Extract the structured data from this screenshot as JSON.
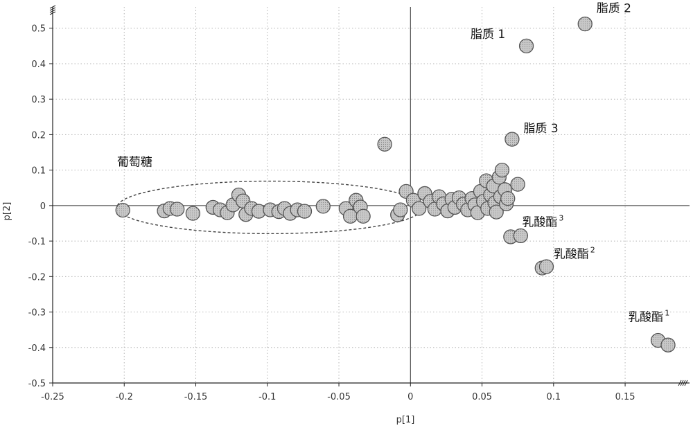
{
  "chart_data": {
    "type": "scatter",
    "xlabel": "p[1]",
    "ylabel": "p[2]",
    "xlim": [
      -0.25,
      0.195
    ],
    "ylim": [
      -0.5,
      0.56
    ],
    "x_ticks": [
      "-0.25",
      "-0.2",
      "-0.15",
      "-0.1",
      "-0.05",
      "0",
      "0.05",
      "0.1",
      "0.15"
    ],
    "x_tick_values": [
      -0.25,
      -0.2,
      -0.15,
      -0.1,
      -0.05,
      0,
      0.05,
      0.1,
      0.15
    ],
    "y_ticks": [
      "0.5",
      "0.4",
      "0.3",
      "0.2",
      "0.1",
      "0",
      "-0.1",
      "-0.2",
      "-0.3",
      "-0.4",
      "-0.5"
    ],
    "y_tick_values": [
      0.5,
      0.4,
      0.3,
      0.2,
      0.1,
      0,
      -0.1,
      -0.2,
      -0.3,
      -0.4,
      -0.5
    ],
    "grid": true,
    "point_color": "#c8c8c8",
    "points": [
      {
        "x": -0.201,
        "y": -0.013
      },
      {
        "x": -0.172,
        "y": -0.015
      },
      {
        "x": -0.168,
        "y": -0.008
      },
      {
        "x": -0.163,
        "y": -0.01
      },
      {
        "x": -0.152,
        "y": -0.022
      },
      {
        "x": -0.138,
        "y": -0.005
      },
      {
        "x": -0.133,
        "y": -0.012
      },
      {
        "x": -0.128,
        "y": -0.02
      },
      {
        "x": -0.124,
        "y": 0.002
      },
      {
        "x": -0.12,
        "y": 0.03
      },
      {
        "x": -0.117,
        "y": 0.013
      },
      {
        "x": -0.115,
        "y": -0.025
      },
      {
        "x": -0.111,
        "y": -0.008
      },
      {
        "x": -0.106,
        "y": -0.016
      },
      {
        "x": -0.098,
        "y": -0.012
      },
      {
        "x": -0.092,
        "y": -0.017
      },
      {
        "x": -0.088,
        "y": -0.008
      },
      {
        "x": -0.084,
        "y": -0.022
      },
      {
        "x": -0.079,
        "y": -0.012
      },
      {
        "x": -0.074,
        "y": -0.016
      },
      {
        "x": -0.061,
        "y": -0.002
      },
      {
        "x": -0.045,
        "y": -0.008
      },
      {
        "x": -0.042,
        "y": -0.03
      },
      {
        "x": -0.038,
        "y": 0.015
      },
      {
        "x": -0.035,
        "y": -0.004
      },
      {
        "x": -0.033,
        "y": -0.03
      },
      {
        "x": -0.018,
        "y": 0.173
      },
      {
        "x": -0.009,
        "y": -0.026
      },
      {
        "x": -0.007,
        "y": -0.012
      },
      {
        "x": -0.003,
        "y": 0.04
      },
      {
        "x": 0.002,
        "y": 0.015
      },
      {
        "x": 0.006,
        "y": -0.008
      },
      {
        "x": 0.01,
        "y": 0.034
      },
      {
        "x": 0.014,
        "y": 0.012
      },
      {
        "x": 0.017,
        "y": -0.01
      },
      {
        "x": 0.02,
        "y": 0.025
      },
      {
        "x": 0.023,
        "y": 0.005
      },
      {
        "x": 0.026,
        "y": -0.015
      },
      {
        "x": 0.029,
        "y": 0.018
      },
      {
        "x": 0.031,
        "y": -0.005
      },
      {
        "x": 0.034,
        "y": 0.022
      },
      {
        "x": 0.037,
        "y": 0.004
      },
      {
        "x": 0.04,
        "y": -0.012
      },
      {
        "x": 0.043,
        "y": 0.02
      },
      {
        "x": 0.045,
        "y": 0.002
      },
      {
        "x": 0.047,
        "y": -0.02
      },
      {
        "x": 0.049,
        "y": 0.04
      },
      {
        "x": 0.051,
        "y": 0.012
      },
      {
        "x": 0.053,
        "y": 0.07
      },
      {
        "x": 0.054,
        "y": -0.008
      },
      {
        "x": 0.056,
        "y": 0.03
      },
      {
        "x": 0.058,
        "y": 0.055
      },
      {
        "x": 0.059,
        "y": 0.008
      },
      {
        "x": 0.06,
        "y": -0.018
      },
      {
        "x": 0.062,
        "y": 0.08
      },
      {
        "x": 0.063,
        "y": 0.025
      },
      {
        "x": 0.064,
        "y": 0.1
      },
      {
        "x": 0.066,
        "y": 0.045
      },
      {
        "x": 0.067,
        "y": 0.005
      },
      {
        "x": 0.068,
        "y": 0.02
      },
      {
        "x": 0.07,
        "y": -0.088
      },
      {
        "x": 0.071,
        "y": 0.187
      },
      {
        "x": 0.075,
        "y": 0.06
      },
      {
        "x": 0.077,
        "y": -0.085
      },
      {
        "x": 0.081,
        "y": 0.45
      },
      {
        "x": 0.092,
        "y": -0.176
      },
      {
        "x": 0.095,
        "y": -0.172
      },
      {
        "x": 0.122,
        "y": 0.512
      },
      {
        "x": 0.173,
        "y": -0.38
      },
      {
        "x": 0.18,
        "y": -0.393
      }
    ],
    "ellipse": {
      "cx": -0.098,
      "cy": -0.005,
      "rx": 0.107,
      "ry": 0.074
    },
    "annotations": [
      {
        "text": "脂质 2",
        "sup": "",
        "x": 0.13,
        "y": 0.545
      },
      {
        "text": "脂质 1",
        "sup": "",
        "x": 0.042,
        "y": 0.472
      },
      {
        "text": "脂质 3",
        "sup": "",
        "x": 0.079,
        "y": 0.207
      },
      {
        "text": "葡萄糖",
        "sup": "",
        "x": -0.205,
        "y": 0.112
      },
      {
        "text": "乳酸酯",
        "sup": "3",
        "x": 0.078,
        "y": -0.058
      },
      {
        "text": "乳酸酯",
        "sup": "2",
        "x": 0.1,
        "y": -0.148
      },
      {
        "text": "乳酸酯",
        "sup": "1",
        "x": 0.152,
        "y": -0.325
      }
    ]
  }
}
